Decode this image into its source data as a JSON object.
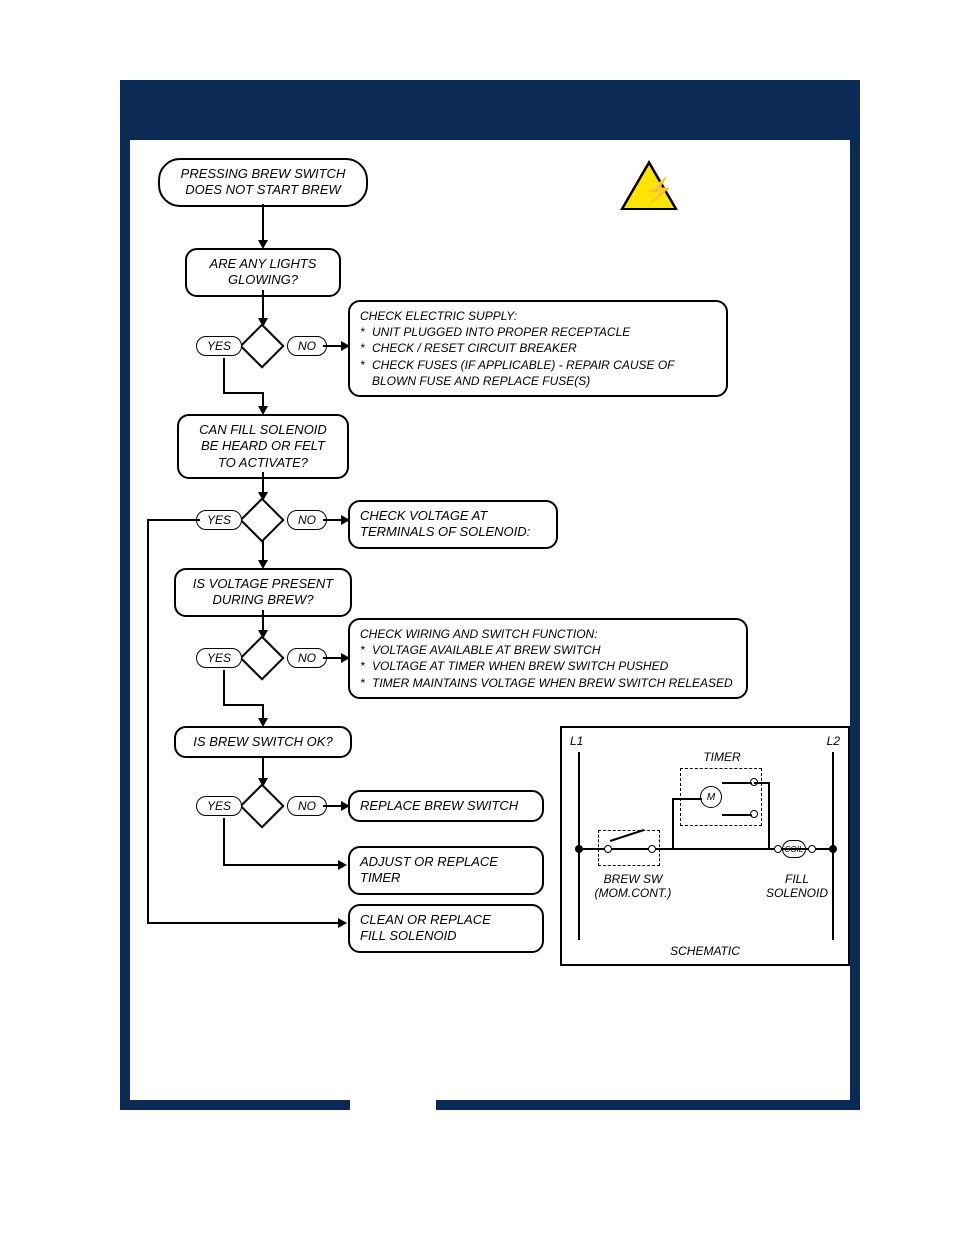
{
  "colors": {
    "frame": "#0b2a55",
    "warn_fill": "#ffe400"
  },
  "flow": {
    "start": "PRESSING BREW SWITCH\nDOES NOT START BREW",
    "q_lights": "ARE ANY LIGHTS\nGLOWING?",
    "supply_lead": "CHECK ELECTRIC SUPPLY:",
    "supply_items": [
      "UNIT PLUGGED INTO PROPER RECEPTACLE",
      "CHECK / RESET CIRCUIT BREAKER",
      "CHECK FUSES (IF APPLICABLE) - REPAIR CAUSE OF BLOWN FUSE AND REPLACE FUSE(S)"
    ],
    "q_solenoid": "CAN FILL SOLENOID\nBE HEARD OR FELT\nTO ACTIVATE?",
    "check_voltage": "CHECK VOLTAGE AT\nTERMINALS OF SOLENOID:",
    "q_voltage": "IS VOLTAGE PRESENT\nDURING BREW?",
    "wiring_lead": "CHECK WIRING AND SWITCH FUNCTION:",
    "wiring_items": [
      "VOLTAGE AVAILABLE AT BREW SWITCH",
      "VOLTAGE AT TIMER WHEN BREW SWITCH PUSHED",
      "TIMER MAINTAINS VOLTAGE WHEN BREW SWITCH RELEASED"
    ],
    "q_switch": "IS BREW SWITCH OK?",
    "replace_switch": "REPLACE BREW SWITCH",
    "adjust_timer": "ADJUST OR REPLACE\nTIMER",
    "clean_solenoid": "CLEAN OR REPLACE\nFILL SOLENOID",
    "yes": "YES",
    "no": "NO"
  },
  "schematic": {
    "title": "SCHEMATIC",
    "l1": "L1",
    "l2": "L2",
    "timer": "TIMER",
    "m": "M",
    "coil": "COIL",
    "brew_sw": "BREW SW",
    "mom": "(MOM.CONT.)",
    "fill_sol": "FILL\nSOLENOID"
  }
}
